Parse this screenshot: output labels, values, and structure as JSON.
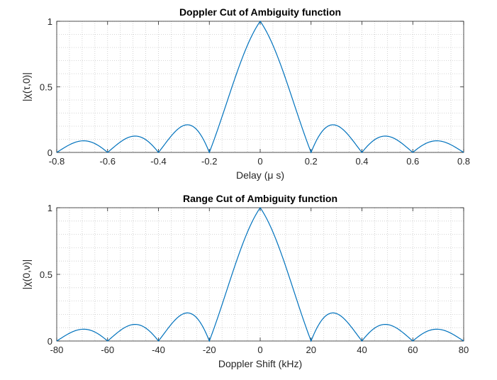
{
  "chart_data": [
    {
      "type": "line",
      "title": "Doppler Cut of Ambiguity function",
      "xlabel": "Delay (μ s)",
      "ylabel": "|χ(τ,0)|",
      "xlim": [
        -0.8,
        0.8
      ],
      "ylim": [
        0,
        1
      ],
      "xticks": [
        "-0.8",
        "-0.6",
        "-0.4",
        "-0.2",
        "0",
        "0.2",
        "0.4",
        "0.6",
        "0.8"
      ],
      "yticks": [
        "0",
        "0.5",
        "1"
      ],
      "grid": true,
      "color": "#0072BD",
      "series": [
        {
          "main_lobe_halfwidth": 0.2,
          "period": 0.2
        }
      ]
    },
    {
      "type": "line",
      "title": "Range Cut of Ambiguity function",
      "xlabel": "Doppler Shift (kHz)",
      "ylabel": "|χ(0,ν)|",
      "xlim": [
        -80,
        80
      ],
      "ylim": [
        0,
        1
      ],
      "xticks": [
        "-80",
        "-60",
        "-40",
        "-20",
        "0",
        "20",
        "40",
        "60",
        "80"
      ],
      "yticks": [
        "0",
        "0.5",
        "1"
      ],
      "grid": true,
      "color": "#0072BD",
      "series": [
        {
          "main_lobe_halfwidth": 20,
          "period": 20
        }
      ]
    }
  ]
}
